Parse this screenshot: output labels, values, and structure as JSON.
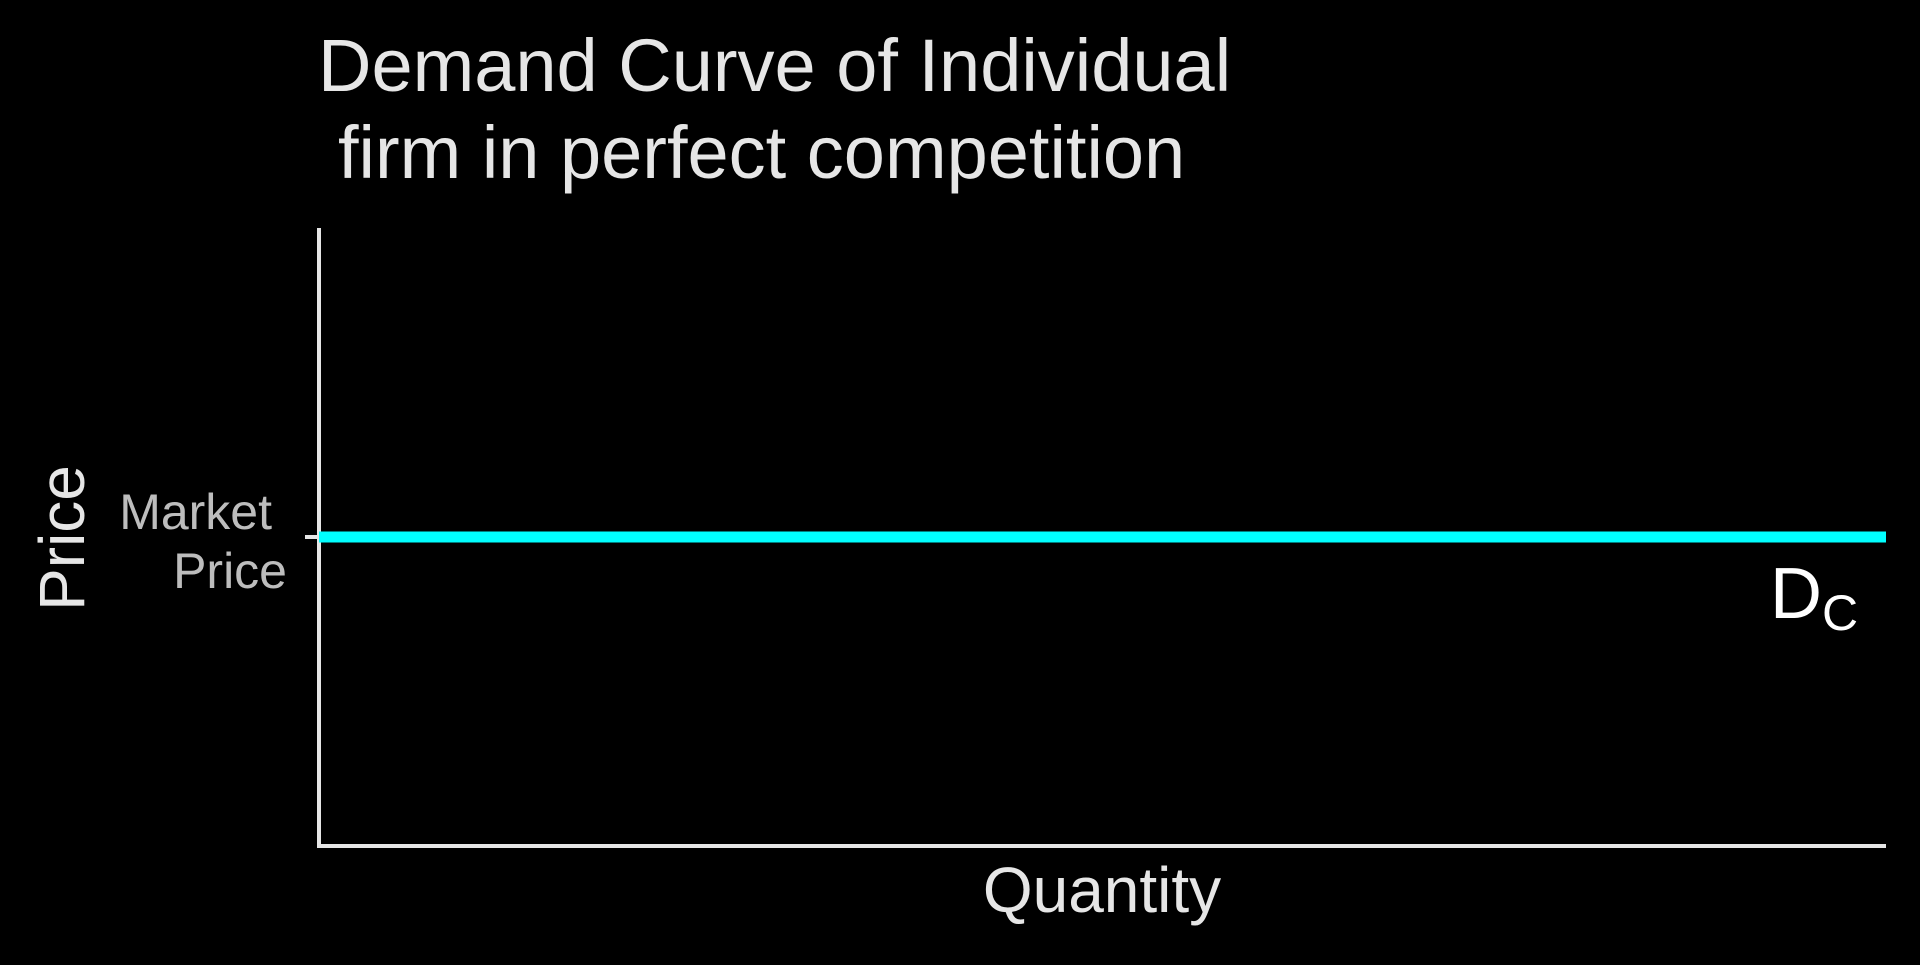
{
  "chart_data": {
    "type": "line",
    "title_lines": [
      "Demand Curve of Individual",
      "firm in perfect competition"
    ],
    "xlabel": "Quantity",
    "ylabel": "Price",
    "ylim": [
      0,
      1
    ],
    "xlim": [
      0,
      1
    ],
    "y_ticks": [
      {
        "value": 0.5,
        "label_lines": [
          "Market",
          "Price"
        ]
      }
    ],
    "series": [
      {
        "name_main": "D",
        "name_sub": "C",
        "x": [
          0,
          1
        ],
        "y": [
          0.5,
          0.5
        ],
        "color": "#00ffff"
      }
    ],
    "grid": false,
    "legend": "none"
  },
  "colors": {
    "background": "#000000",
    "axis": "#e6e6e6",
    "curve": "#00ffff"
  }
}
